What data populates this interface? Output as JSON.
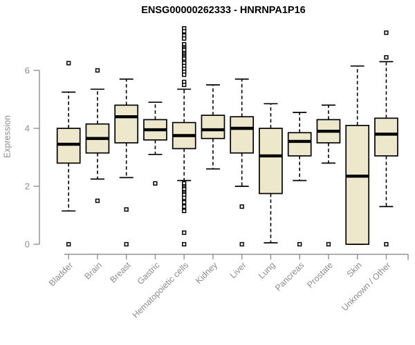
{
  "chart_data": {
    "type": "boxplot",
    "title": "ENSG00000262333 - HNRNPA1P16",
    "ylabel": "Expression",
    "xlabel": "",
    "yticks": [
      0,
      2,
      4,
      6
    ],
    "ylim": [
      -0.3,
      7.6
    ],
    "grid": false,
    "legend": "none",
    "categories": [
      "Bladder",
      "Brain",
      "Breast",
      "Gastric",
      "Hematopoietic cells",
      "Kidney",
      "Liver",
      "Lung",
      "Pancreas",
      "Prostate",
      "Skin",
      "Unknown / Other"
    ],
    "boxes": [
      {
        "category": "Bladder",
        "whisker_low": 1.15,
        "q1": 2.8,
        "median": 3.45,
        "q3": 4.0,
        "whisker_high": 5.25,
        "outliers": [
          6.25,
          0
        ]
      },
      {
        "category": "Brain",
        "whisker_low": 2.25,
        "q1": 3.15,
        "median": 3.65,
        "q3": 4.15,
        "whisker_high": 5.35,
        "outliers": [
          6.0,
          1.5
        ]
      },
      {
        "category": "Breast",
        "whisker_low": 2.3,
        "q1": 3.5,
        "median": 4.4,
        "q3": 4.8,
        "whisker_high": 5.7,
        "outliers": [
          1.2,
          0
        ]
      },
      {
        "category": "Gastric",
        "whisker_low": 3.1,
        "q1": 3.6,
        "median": 3.95,
        "q3": 4.3,
        "whisker_high": 4.9,
        "outliers": [
          2.1
        ]
      },
      {
        "category": "Hematopoietic cells",
        "whisker_low": 2.2,
        "q1": 3.3,
        "median": 3.75,
        "q3": 4.2,
        "whisker_high": 5.35,
        "outliers": [
          7.45,
          7.35,
          7.2,
          7.1,
          6.9,
          6.8,
          6.75,
          6.7,
          6.6,
          6.55,
          6.5,
          6.45,
          6.4,
          6.3,
          6.25,
          6.15,
          6.05,
          5.95,
          5.85,
          5.6,
          5.5,
          2.1,
          2.0,
          1.95,
          1.9,
          1.8,
          1.75,
          1.7,
          1.6,
          1.45,
          1.3,
          1.15,
          0.4,
          0
        ]
      },
      {
        "category": "Kidney",
        "whisker_low": 2.6,
        "q1": 3.65,
        "median": 3.95,
        "q3": 4.45,
        "whisker_high": 5.5,
        "outliers": []
      },
      {
        "category": "Liver",
        "whisker_low": 2.0,
        "q1": 3.15,
        "median": 4.0,
        "q3": 4.4,
        "whisker_high": 5.7,
        "outliers": [
          1.3,
          0
        ]
      },
      {
        "category": "Lung",
        "whisker_low": 0.05,
        "q1": 1.75,
        "median": 3.05,
        "q3": 4.0,
        "whisker_high": 4.85,
        "outliers": []
      },
      {
        "category": "Pancreas",
        "whisker_low": 2.2,
        "q1": 3.05,
        "median": 3.55,
        "q3": 3.85,
        "whisker_high": 4.55,
        "outliers": [
          0
        ]
      },
      {
        "category": "Prostate",
        "whisker_low": 2.8,
        "q1": 3.5,
        "median": 3.9,
        "q3": 4.3,
        "whisker_high": 4.8,
        "outliers": [
          0
        ]
      },
      {
        "category": "Skin",
        "whisker_low": 0.0,
        "q1": 0.0,
        "median": 2.35,
        "q3": 4.1,
        "whisker_high": 6.15,
        "outliers": []
      },
      {
        "category": "Unknown / Other",
        "whisker_low": 1.3,
        "q1": 3.05,
        "median": 3.8,
        "q3": 4.35,
        "whisker_high": 6.3,
        "outliers": [
          7.3,
          6.45,
          0
        ]
      }
    ],
    "colors": {
      "background": "#ffffff",
      "box_fill": "#EDE7CB",
      "box_stroke": "#000000",
      "median": "#000000",
      "whisker": "#000000",
      "outlier_stroke": "#000000",
      "outlier_fill": "#ffffff",
      "axis_line": "#909090",
      "axis_text": "#8c8c8c",
      "title_text": "#000000"
    }
  }
}
